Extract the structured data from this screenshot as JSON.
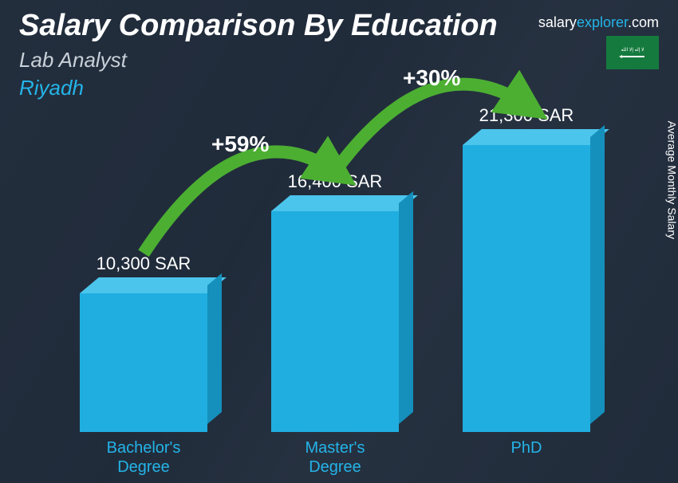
{
  "header": {
    "title": "Salary Comparison By Education",
    "subtitle": "Lab Analyst",
    "location": "Riyadh"
  },
  "brand": {
    "prefix": "salary",
    "mid": "explorer",
    "suffix": ".com"
  },
  "flag": {
    "country": "Saudi Arabia",
    "color": "#157a3e"
  },
  "axis": {
    "label": "Average Monthly Salary"
  },
  "chart": {
    "type": "bar",
    "max_value": 21300,
    "bar_colors": {
      "front": "#20aee0",
      "top": "#4cc5ec",
      "side": "#1590bc"
    },
    "arrow_color": "#4caf32",
    "text_color": "#ffffff",
    "category_color": "#24b4e8",
    "bars": [
      {
        "category": "Bachelor's\nDegree",
        "value": 10300,
        "label": "10,300 SAR"
      },
      {
        "category": "Master's\nDegree",
        "value": 16400,
        "label": "16,400 SAR"
      },
      {
        "category": "PhD",
        "value": 21300,
        "label": "21,300 SAR"
      }
    ],
    "increases": [
      {
        "from": 0,
        "to": 1,
        "label": "+59%"
      },
      {
        "from": 1,
        "to": 2,
        "label": "+30%"
      }
    ]
  }
}
